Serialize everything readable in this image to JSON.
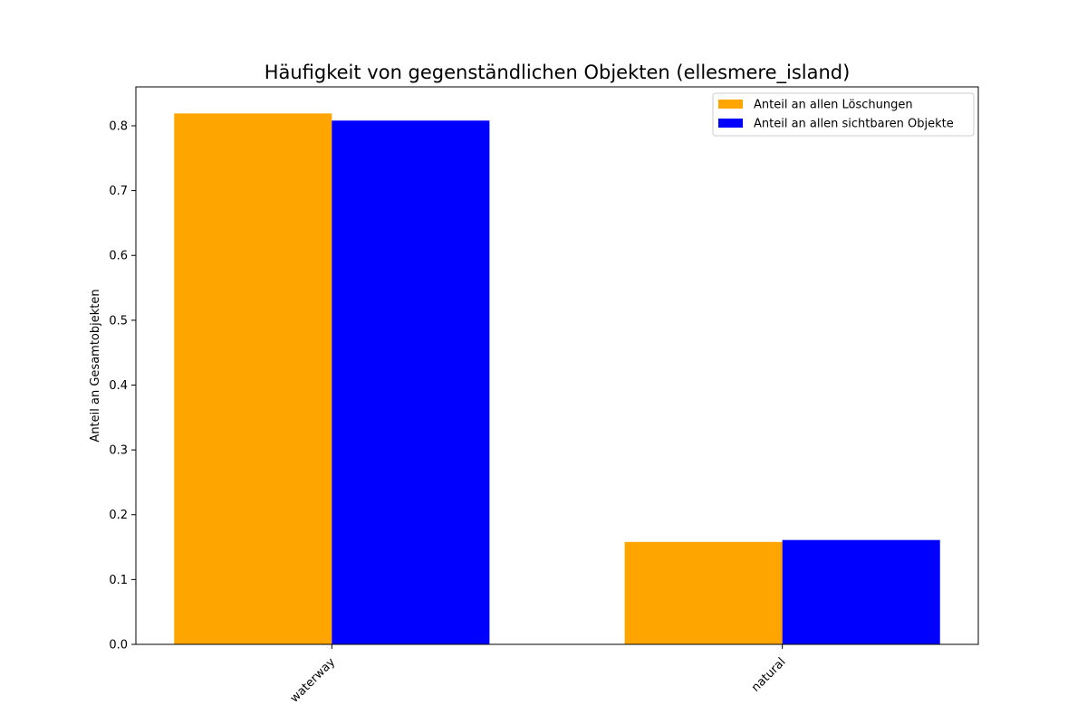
{
  "chart_data": {
    "type": "bar",
    "title": "Häufigkeit von gegenständlichen Objekten (ellesmere_island)",
    "xlabel": "",
    "ylabel": "Anteil an Gesamtobjekten",
    "categories": [
      "waterway",
      "natural"
    ],
    "series": [
      {
        "name": "Anteil an allen Löschungen",
        "color": "#ffa500",
        "values": [
          0.819,
          0.158
        ]
      },
      {
        "name": "Anteil an allen sichtbaren Objekte",
        "color": "#0000ff",
        "values": [
          0.808,
          0.161
        ]
      }
    ],
    "ylim": [
      0,
      0.86
    ],
    "yticks": [
      0.0,
      0.1,
      0.2,
      0.3,
      0.4,
      0.5,
      0.6,
      0.7,
      0.8
    ],
    "ytick_labels": [
      "0.0",
      "0.1",
      "0.2",
      "0.3",
      "0.4",
      "0.5",
      "0.6",
      "0.7",
      "0.8"
    ],
    "grid": false,
    "legend_position": "top-right"
  }
}
